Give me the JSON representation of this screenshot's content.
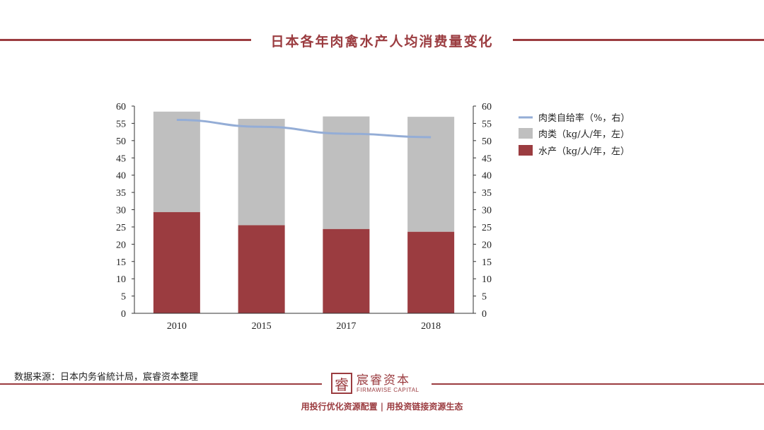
{
  "title": "日本各年肉禽水产人均消费量变化",
  "source": "数据来源：日本内务省統计局，宸睿资本整理",
  "logo": {
    "cn": "宸睿资本",
    "en": "FIRMAWISE CAPITAL",
    "mark": "睿"
  },
  "slogan": "用投行优化资源配置 | 用投资链接资源生态",
  "colors": {
    "accent": "#9b3c40",
    "meat": "#bfbfbf",
    "fish": "#9b3c40",
    "line": "#94add6"
  },
  "chart_data": {
    "type": "bar",
    "stacked": true,
    "categories": [
      "2010",
      "2015",
      "2017",
      "2018"
    ],
    "series": [
      {
        "name": "水产（kg/人/年，左）",
        "type": "bar",
        "axis": "left",
        "values": [
          29.3,
          25.5,
          24.4,
          23.6
        ]
      },
      {
        "name": "肉类（kg/人/年，左）",
        "type": "bar",
        "axis": "left",
        "values": [
          29.1,
          30.8,
          32.6,
          33.3
        ]
      },
      {
        "name": "肉类自给率（%，右）",
        "type": "line",
        "axis": "right",
        "values": [
          56,
          54,
          52,
          51
        ]
      }
    ],
    "ylim": [
      0,
      60
    ],
    "y2lim": [
      0,
      60
    ],
    "yticks": [
      0,
      5,
      10,
      15,
      20,
      25,
      30,
      35,
      40,
      45,
      50,
      55,
      60
    ],
    "legend": "right",
    "legend_order": [
      "肉类自给率（%，右）",
      "肉类（kg/人/年，左）",
      "水产（kg/人/年，左）"
    ]
  }
}
